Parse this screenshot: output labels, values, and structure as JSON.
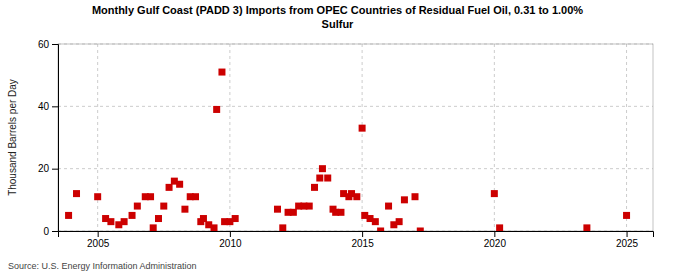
{
  "chart_data": {
    "type": "scatter",
    "title": "Monthly Gulf Coast (PADD 3) Imports from OPEC Countries of Residual Fuel Oil, 0.31 to 1.00%\nSulfur",
    "ylabel": "Thousand Barrels per Day",
    "annotations": [
      "Source: U.S. Energy Information Administration"
    ],
    "color": "#cc0000",
    "marker": "square",
    "grid": true,
    "xlim": [
      2003.5,
      2026.0
    ],
    "xticks": [
      2005,
      2010,
      2015,
      2020,
      2025
    ],
    "ylim": [
      0,
      60
    ],
    "yticks": [
      0,
      20,
      40,
      60
    ],
    "x": [
      2003.9,
      2004.2,
      2005.0,
      2005.3,
      2005.5,
      2005.8,
      2006.0,
      2006.3,
      2006.5,
      2006.8,
      2007.0,
      2007.1,
      2007.3,
      2007.5,
      2007.7,
      2007.9,
      2008.1,
      2008.3,
      2008.5,
      2008.7,
      2008.9,
      2009.0,
      2009.2,
      2009.4,
      2009.5,
      2009.7,
      2009.8,
      2010.0,
      2010.2,
      2011.8,
      2012.0,
      2012.2,
      2012.4,
      2012.6,
      2012.8,
      2013.0,
      2013.2,
      2013.4,
      2013.5,
      2013.7,
      2013.9,
      2014.0,
      2014.2,
      2014.3,
      2014.5,
      2014.6,
      2014.8,
      2015.0,
      2015.1,
      2015.3,
      2015.5,
      2015.7,
      2016.0,
      2016.2,
      2016.4,
      2016.6,
      2017.0,
      2017.2,
      2020.0,
      2020.2,
      2023.5,
      2025.0
    ],
    "values": [
      5,
      12,
      11,
      4,
      3,
      2,
      3,
      5,
      8,
      11,
      11,
      1,
      4,
      8,
      14,
      16,
      15,
      7,
      11,
      11,
      3,
      4,
      2,
      1,
      39,
      51,
      3,
      3,
      4,
      7,
      1,
      6,
      6,
      8,
      8,
      8,
      14,
      17,
      20,
      17,
      7,
      6,
      6,
      12,
      11,
      12,
      11,
      33,
      5,
      4,
      3,
      0,
      8,
      2,
      3,
      10,
      11,
      0,
      12,
      1,
      1,
      5
    ]
  }
}
